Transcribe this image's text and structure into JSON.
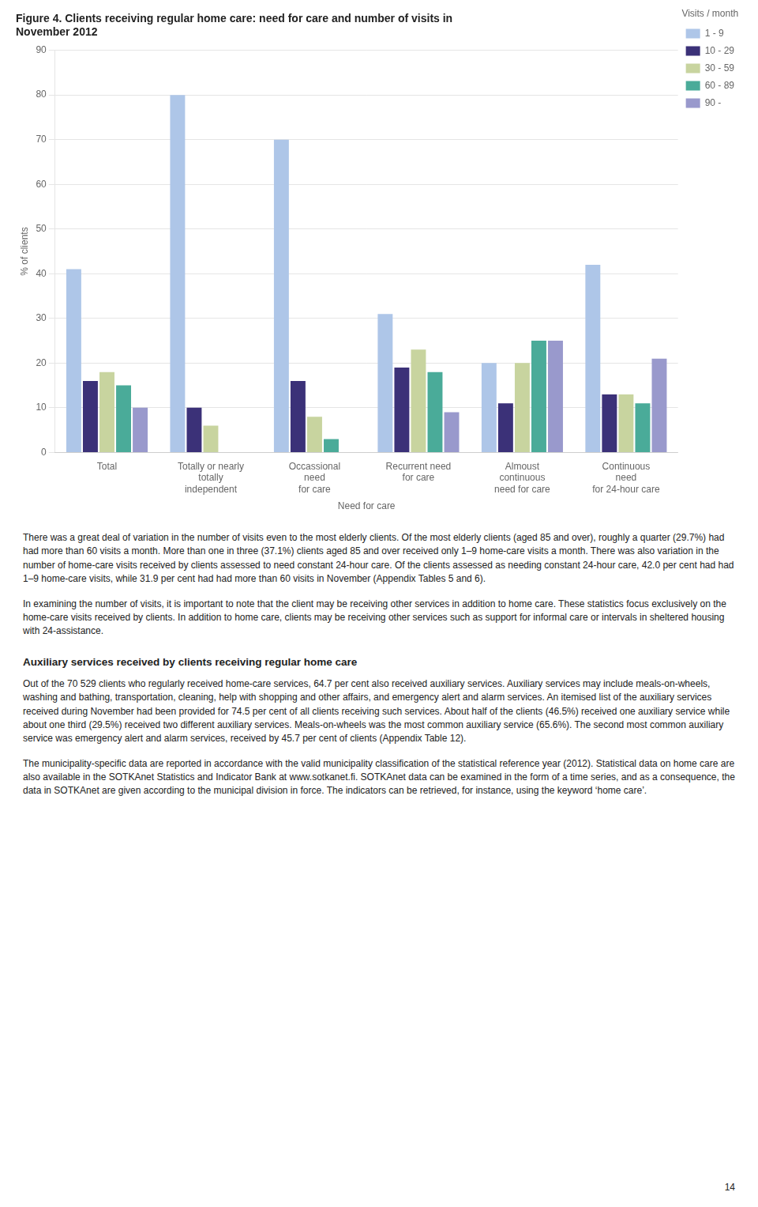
{
  "chart_data": {
    "type": "bar",
    "title": "Figure 4. Clients receiving regular home care: need for care and number of visits in\nNovember 2012",
    "categories": [
      "Total",
      "Totally or nearly\ntotally\nindependent",
      "Occassional\nneed\nfor care",
      "Recurrent need\nfor care",
      "Almoust\ncontinuous\nneed for care",
      "Continuous\nneed\nfor 24-hour care"
    ],
    "x_label": "Need for care",
    "y_label": "% of clients",
    "ylim": [
      0,
      90
    ],
    "yticks": [
      0,
      10,
      20,
      30,
      40,
      50,
      60,
      70,
      80,
      90
    ],
    "grid": true,
    "legend": "upper right",
    "legend_title": "Visits / month",
    "series": [
      {
        "name": "1 - 9",
        "color": "#aec6e8",
        "values": [
          41,
          80,
          70,
          31,
          20,
          42
        ]
      },
      {
        "name": "10 - 29",
        "color": "#3b3178",
        "values": [
          16,
          10,
          16,
          19,
          11,
          13
        ]
      },
      {
        "name": "30 - 59",
        "color": "#c8d49f",
        "values": [
          18,
          6,
          8,
          23,
          20,
          13
        ]
      },
      {
        "name": "60 - 89",
        "color": "#4aab99",
        "values": [
          15,
          0,
          3,
          18,
          25,
          11
        ]
      },
      {
        "name": "90 -",
        "color": "#9999cc",
        "values": [
          10,
          0,
          0,
          9,
          25,
          21
        ]
      }
    ]
  },
  "body": [
    {
      "type": "paragraph",
      "text": "There was a great deal of variation in the number of visits even to the most elderly clients. Of the most elderly clients (aged 85 and over), roughly a quarter (29.7%) had had more than 60 visits a month. More than one in three (37.1%) clients aged 85 and over received only 1–9 home-care visits a month. There was also variation in the number of home-care visits received by clients assessed to need constant 24-hour care. Of the clients assessed as needing constant 24-hour care, 42.0 per cent had had 1–9 home-care visits, while 31.9 per cent had had more than 60 visits in November (Appendix Tables 5 and 6)."
    },
    {
      "type": "paragraph",
      "text": "In examining the number of visits, it is important to note that the client may be receiving other services in addition to home care. These statistics focus exclusively on the home-care visits received by clients. In addition to home care, clients may be receiving other services such as support for informal care or intervals in sheltered housing with 24-assistance."
    },
    {
      "type": "heading",
      "text": "Auxiliary services received by clients receiving regular home care"
    },
    {
      "type": "paragraph",
      "text": "Out of the 70 529 clients who regularly received home-care services, 64.7 per cent also received auxiliary services. Auxiliary services may include meals-on-wheels, washing and bathing, transportation, cleaning, help with shopping and other affairs, and emergency alert and alarm services. An itemised list of the auxiliary services received during November had been provided for 74.5 per cent of all clients receiving such services. About half of the clients (46.5%) received one auxiliary service while about one third (29.5%) received two different auxiliary services. Meals-on-wheels was the most common auxiliary service (65.6%). The second most common auxiliary service was emergency alert and alarm services, received by 45.7 per cent of clients (Appendix Table 12)."
    },
    {
      "type": "paragraph",
      "text": "The municipality-specific data are reported in accordance with the valid municipality classification of the statistical reference year (2012). Statistical data on home care are also available in the SOTKAnet Statistics and Indicator Bank at www.sotkanet.fi. SOTKAnet data can be examined in the form of a time series, and as a consequence, the data in SOTKAnet are given according to the municipal division in force. The indicators can be retrieved, for instance, using the keyword ‘home care’."
    }
  ],
  "page_number": "14"
}
